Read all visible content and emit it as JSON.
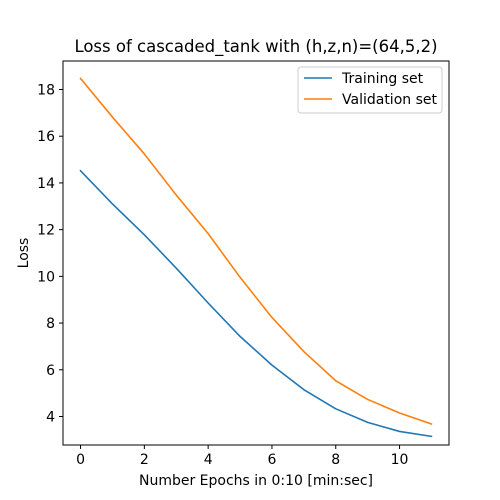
{
  "chart_data": {
    "type": "line",
    "title": "Loss of cascaded_tank with (h,z,n)=(64,5,2)",
    "xlabel": "Number Epochs in  0:10 [min:sec]",
    "ylabel": "Loss",
    "xlim": [
      -0.55,
      11.55
    ],
    "ylim": [
      2.78,
      19.22
    ],
    "xticks": [
      0,
      2,
      4,
      6,
      8,
      10
    ],
    "yticks": [
      4,
      6,
      8,
      10,
      12,
      14,
      16,
      18
    ],
    "x": [
      0,
      1,
      2,
      3,
      4,
      5,
      6,
      7,
      8,
      9,
      10,
      11
    ],
    "series": [
      {
        "name": "Training set",
        "color": "#1f77b4",
        "values": [
          14.52,
          13.1,
          11.78,
          10.35,
          8.86,
          7.43,
          6.2,
          5.15,
          4.33,
          3.75,
          3.36,
          3.15
        ]
      },
      {
        "name": "Validation set",
        "color": "#ff7f0e",
        "values": [
          18.47,
          16.82,
          15.24,
          13.48,
          11.83,
          9.96,
          8.24,
          6.78,
          5.53,
          4.73,
          4.15,
          3.68
        ]
      }
    ],
    "legend": "top-right",
    "grid": false
  }
}
